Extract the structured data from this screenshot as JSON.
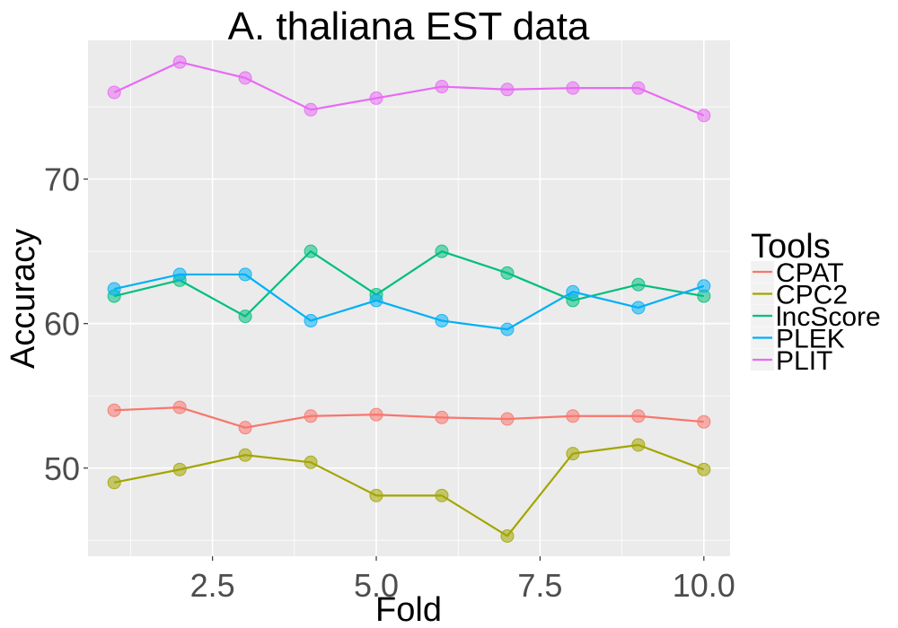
{
  "chart_data": {
    "type": "line",
    "title": "A. thaliana EST data",
    "xlabel": "Fold",
    "ylabel": "Accuracy",
    "xlim": [
      0.6,
      10.4
    ],
    "ylim": [
      43.9,
      79.6
    ],
    "x_ticks": [
      2.5,
      5.0,
      7.5,
      10.0
    ],
    "x_tick_labels": [
      "2.5",
      "5.0",
      "7.5",
      "10.0"
    ],
    "y_ticks": [
      50,
      60,
      70
    ],
    "y_tick_labels": [
      "50",
      "60",
      "70"
    ],
    "grid": true,
    "legend": {
      "title": "Tools",
      "position": "right"
    },
    "x": [
      1,
      2,
      3,
      4,
      5,
      6,
      7,
      8,
      9,
      10
    ],
    "series": [
      {
        "name": "CPAT",
        "color": "#F8766D",
        "values": [
          54.0,
          54.2,
          52.8,
          53.6,
          53.7,
          53.5,
          53.4,
          53.6,
          53.6,
          53.2
        ]
      },
      {
        "name": "CPC2",
        "color": "#A3A500",
        "values": [
          49.0,
          49.9,
          50.9,
          50.4,
          48.1,
          48.1,
          45.3,
          51.0,
          51.6,
          49.9
        ]
      },
      {
        "name": "lncScore",
        "color": "#00BF7D",
        "values": [
          61.9,
          63.0,
          60.5,
          65.0,
          62.0,
          65.0,
          63.5,
          61.6,
          62.7,
          61.9
        ]
      },
      {
        "name": "PLEK",
        "color": "#00B0F6",
        "values": [
          62.4,
          63.4,
          63.4,
          60.2,
          61.6,
          60.2,
          59.6,
          62.2,
          61.1,
          62.6
        ]
      },
      {
        "name": "PLIT",
        "color": "#E76BF3",
        "values": [
          76.0,
          78.1,
          77.0,
          74.8,
          75.6,
          76.4,
          76.2,
          76.3,
          76.3,
          74.4
        ]
      }
    ]
  }
}
